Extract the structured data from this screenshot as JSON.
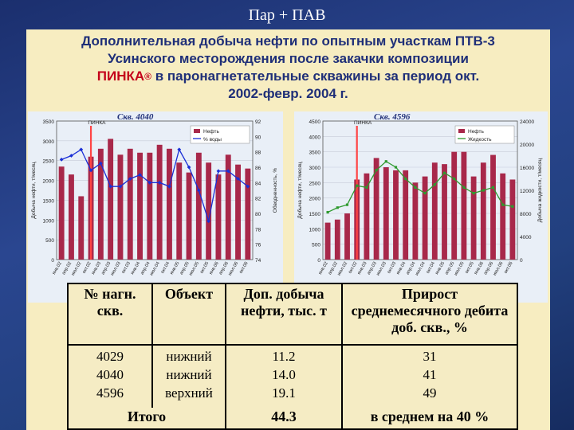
{
  "slide": {
    "title": "Пар + ПАВ",
    "heading_l1": "Дополнительная добыча нефти по опытным участкам ПТВ-3",
    "heading_l2": "Усинского месторождения после закачки композиции",
    "heading_l3_red": "ПИНКА",
    "heading_l3_reg": "®",
    "heading_l3_rest": " в паронагнетательные скважины за период окт.",
    "heading_l4": "2002-февр. 2004 г."
  },
  "colors": {
    "bar": "#a8284a",
    "line_left": "#1a2fd6",
    "line_right": "#2e9a2e",
    "marker_line": "#ff4444",
    "accent": "#1f2f78"
  },
  "chart_data": [
    {
      "type": "bar",
      "title": "Скв. 4040",
      "annotation": "ПИНКА",
      "ylabel": "Добыча нефти, т/месяц",
      "y2label": "Обводненность, %",
      "ylim": [
        0,
        3500
      ],
      "y2lim": [
        74,
        92
      ],
      "yticks": [
        "0",
        "500",
        "1000",
        "1500",
        "2000",
        "2500",
        "3000",
        "3500"
      ],
      "y2ticks": [
        "74",
        "76",
        "78",
        "80",
        "82",
        "84",
        "86",
        "88",
        "90",
        "92"
      ],
      "categories": [
        "янв.02",
        "апр.02",
        "июл.02",
        "окт.02",
        "янв.03",
        "апр.03",
        "июл.03",
        "окт.03",
        "янв.04",
        "апр.04",
        "июл.04",
        "окт.04",
        "янв.05",
        "апр.05",
        "июл.05",
        "окт.05",
        "янв.06",
        "апр.06",
        "июл.06",
        "окт.06"
      ],
      "event_index": 3,
      "series": [
        {
          "name": "Нефть",
          "kind": "bar",
          "axis": "left",
          "values": [
            2350,
            2150,
            1600,
            2600,
            2800,
            3050,
            2650,
            2800,
            2700,
            2700,
            2900,
            2800,
            2450,
            2200,
            2700,
            2450,
            2150,
            2650,
            2400,
            2300
          ]
        },
        {
          "name": "% воды",
          "kind": "line",
          "axis": "right",
          "values": [
            87.0,
            87.5,
            88.3,
            85.6,
            86.5,
            83.5,
            83.5,
            84.5,
            85.0,
            84.0,
            84.0,
            83.5,
            88.3,
            86.0,
            83.0,
            79.0,
            85.5,
            85.5,
            84.5,
            83.5
          ]
        }
      ]
    },
    {
      "type": "bar",
      "title": "Скв. 4596",
      "annotation": "ПИНКА",
      "ylabel": "Добыча нефти, т/месяц",
      "y2label": "Добыча жидкости, т/месяц",
      "ylim": [
        0,
        4500
      ],
      "y2lim": [
        0,
        24000
      ],
      "yticks": [
        "0",
        "500",
        "1000",
        "1500",
        "2000",
        "2500",
        "3000",
        "3500",
        "4000",
        "4500"
      ],
      "y2ticks": [
        "0",
        "4000",
        "8000",
        "12000",
        "16000",
        "20000",
        "24000"
      ],
      "categories": [
        "янв.02",
        "апр.02",
        "июл.02",
        "окт.02",
        "янв.03",
        "апр.03",
        "июл.03",
        "окт.03",
        "янв.04",
        "апр.04",
        "июл.04",
        "окт.04",
        "янв.05",
        "апр.05",
        "июл.05",
        "окт.05",
        "янв.06",
        "апр.06",
        "июл.06",
        "окт.06"
      ],
      "event_index": 3,
      "series": [
        {
          "name": "Нефть",
          "kind": "bar",
          "axis": "left",
          "values": [
            1200,
            1300,
            1500,
            2600,
            2800,
            3300,
            3000,
            2900,
            2900,
            2500,
            2700,
            3150,
            3100,
            3500,
            3500,
            2700,
            3150,
            3400,
            2800,
            2600
          ]
        },
        {
          "name": "Жидкость",
          "kind": "line",
          "axis": "right",
          "values": [
            8200,
            9000,
            9500,
            12800,
            12500,
            15500,
            17000,
            16000,
            14000,
            12500,
            11500,
            13000,
            15000,
            14000,
            12500,
            11500,
            12000,
            12500,
            9500,
            9200
          ]
        }
      ]
    }
  ],
  "table": {
    "headers": [
      "№ нагн. скв.",
      "Объект",
      "Доп. добыча нефти, тыс. т",
      "Прирост среднемесячного дебита доб. скв., %"
    ],
    "rows": [
      [
        "4029",
        "нижний",
        "11.2",
        "31"
      ],
      [
        "4040",
        "нижний",
        "14.0",
        "41"
      ],
      [
        "4596",
        "верхний",
        "19.1",
        "49"
      ]
    ],
    "total": {
      "label": "Итого",
      "value": "44.3",
      "avg": "в среднем на 40 %"
    }
  }
}
